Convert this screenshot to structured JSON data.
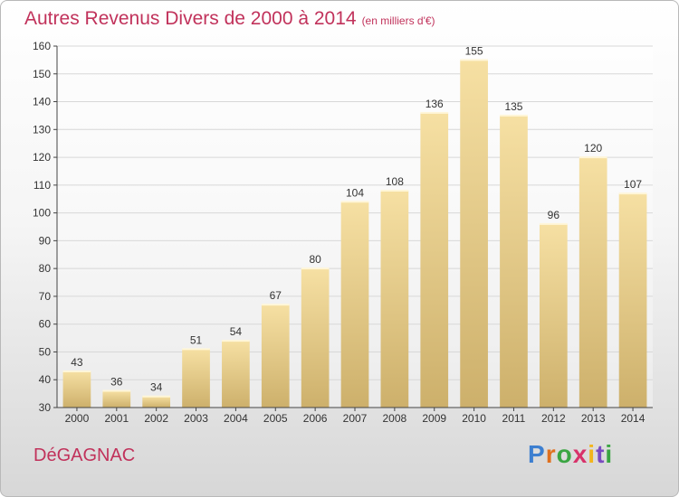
{
  "chart_data": {
    "type": "bar",
    "title": "Autres Revenus Divers de 2000 à 2014",
    "subtitle": "(en milliers d'€)",
    "categories": [
      "2000",
      "2001",
      "2002",
      "2003",
      "2004",
      "2005",
      "2006",
      "2007",
      "2008",
      "2009",
      "2010",
      "2011",
      "2012",
      "2013",
      "2014"
    ],
    "values": [
      43,
      36,
      34,
      51,
      54,
      67,
      80,
      104,
      108,
      136,
      155,
      135,
      96,
      120,
      107
    ],
    "ylim": [
      30,
      160
    ],
    "yticks": [
      30,
      40,
      50,
      60,
      70,
      80,
      90,
      100,
      110,
      120,
      130,
      140,
      150,
      160
    ],
    "grid": true,
    "data_labels": true,
    "colors": {
      "bar_light": "#f6e0a3",
      "bar_dark": "#cdb06b",
      "title": "#c1325b",
      "grid": "#d8d8d8"
    }
  },
  "commune": "DéGAGNAC",
  "brand": {
    "letters": [
      "P",
      "r",
      "o",
      "x",
      "i",
      "t",
      "i"
    ]
  }
}
